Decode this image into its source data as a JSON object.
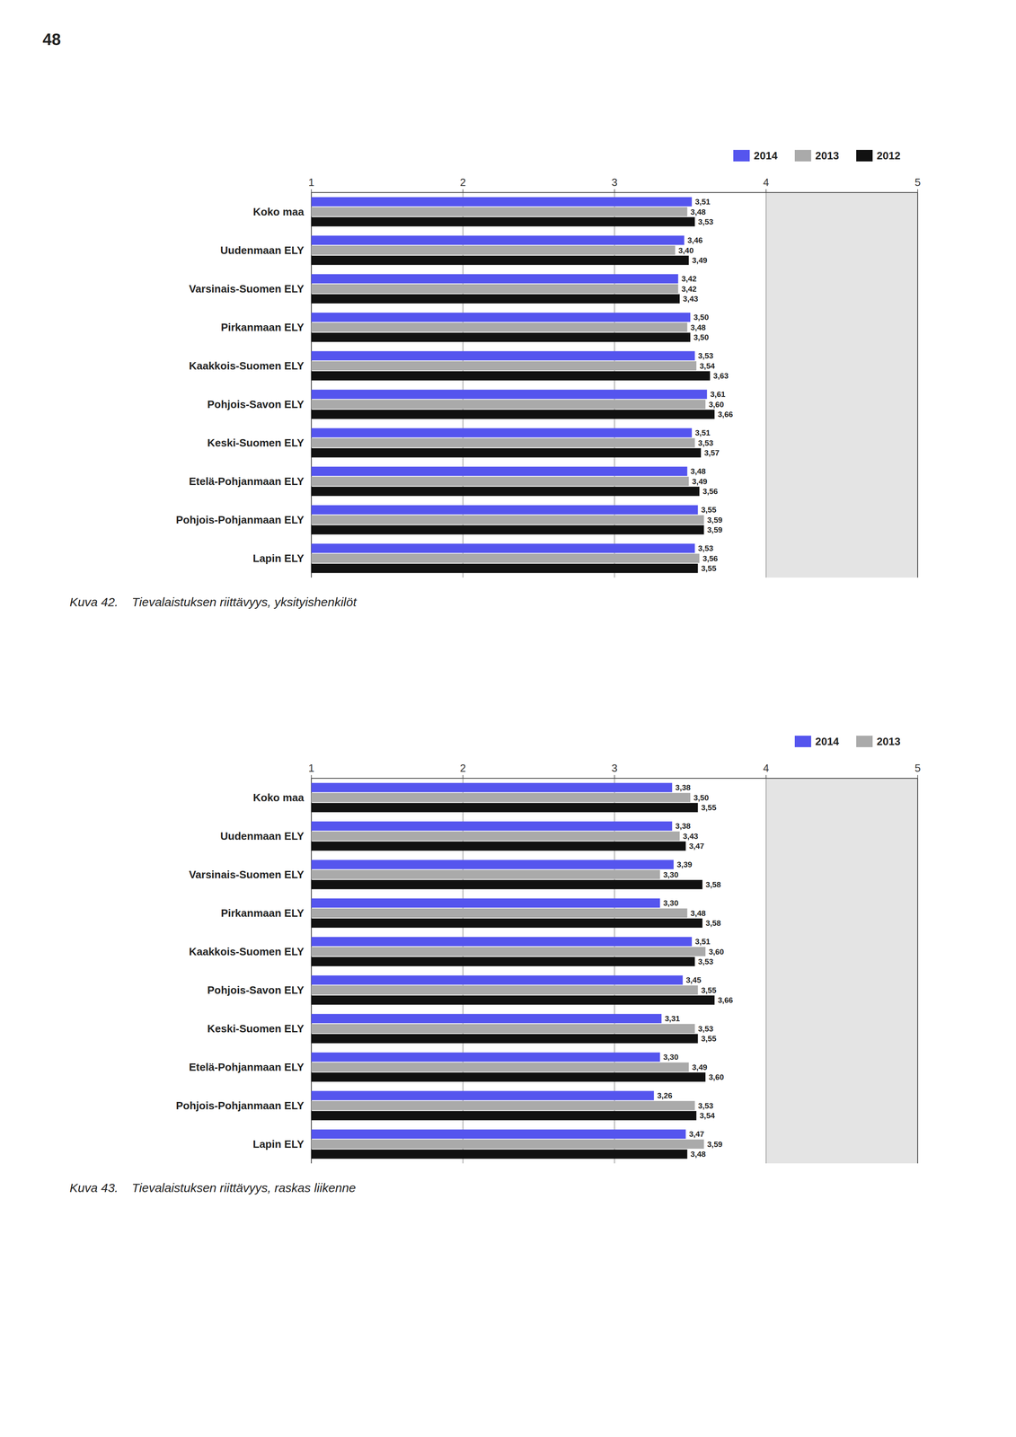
{
  "chart_data": [
    {
      "type": "bar",
      "orientation": "horizontal",
      "annotation": "48",
      "title": "Kuva 42.    Tievalaistuksen riittävyys, yksityishenkilöt",
      "categories": [
        "Koko maa",
        "Uudenmaan ELY",
        "Varsinais-Suomen ELY",
        "Pirkanmaan ELY",
        "Kaakkois-Suomen ELY",
        "Pohjois-Savon ELY",
        "Keski-Suomen ELY",
        "Etelä-Pohjanmaan ELY",
        "Pohjois-Pohjanmaan ELY",
        "Lapin ELY"
      ],
      "series": [
        {
          "name": "2014",
          "color": "#5555ee",
          "values": [
            3.51,
            3.46,
            3.42,
            3.5,
            3.53,
            3.61,
            3.51,
            3.48,
            3.55,
            3.53
          ],
          "value_labels": [
            "3,51",
            "3,46",
            "3,42",
            "3,50",
            "3,53",
            "3,61",
            "3,51",
            "3,48",
            "3,55",
            "3,53"
          ]
        },
        {
          "name": "2013",
          "color": "#aaaaaa",
          "values": [
            3.48,
            3.4,
            3.42,
            3.48,
            3.54,
            3.6,
            3.53,
            3.49,
            3.59,
            3.56
          ],
          "value_labels": [
            "3,48",
            "3,40",
            "3,42",
            "3,48",
            "3,54",
            "3,60",
            "3,53",
            "3,49",
            "3,59",
            "3,56"
          ]
        },
        {
          "name": "2012",
          "color": "#111111",
          "values": [
            3.53,
            3.49,
            3.43,
            3.5,
            3.63,
            3.66,
            3.57,
            3.56,
            3.59,
            3.55
          ],
          "value_labels": [
            "3,53",
            "3,49",
            "3,43",
            "3,50",
            "3,63",
            "3,66",
            "3,57",
            "3,56",
            "3,59",
            "3,55"
          ]
        }
      ],
      "xlim": [
        1,
        5
      ],
      "xticks": [
        1,
        2,
        3,
        4,
        5
      ],
      "shaded_region": [
        4,
        5
      ],
      "grid": true,
      "legend": "top right",
      "data_labels": true
    },
    {
      "type": "bar",
      "orientation": "horizontal",
      "title": "Kuva 43.    Tievalaistuksen riittävyys, raskas liikenne",
      "categories": [
        "Koko maa",
        "Uudenmaan ELY",
        "Varsinais-Suomen ELY",
        "Pirkanmaan ELY",
        "Kaakkois-Suomen ELY",
        "Pohjois-Savon ELY",
        "Keski-Suomen ELY",
        "Etelä-Pohjanmaan ELY",
        "Pohjois-Pohjanmaan ELY",
        "Lapin ELY"
      ],
      "series": [
        {
          "name": "2014",
          "color": "#5555ee",
          "values": [
            3.38,
            3.38,
            3.39,
            3.3,
            3.51,
            3.45,
            3.31,
            3.3,
            3.26,
            3.47
          ],
          "value_labels": [
            "3,38",
            "3,38",
            "3,39",
            "3,30",
            "3,51",
            "3,45",
            "3,31",
            "3,30",
            "3,26",
            "3,47"
          ]
        },
        {
          "name": "2013",
          "color": "#aaaaaa",
          "values": [
            3.5,
            3.43,
            3.3,
            3.48,
            3.6,
            3.55,
            3.53,
            3.49,
            3.53,
            3.59
          ],
          "value_labels": [
            "3,50",
            "3,43",
            "3,30",
            "3,48",
            "3,60",
            "3,55",
            "3,53",
            "3,49",
            "3,53",
            "3,59"
          ]
        },
        {
          "color": "#111111",
          "values": [
            3.55,
            3.47,
            3.58,
            3.58,
            3.53,
            3.66,
            3.55,
            3.6,
            3.54,
            3.48
          ],
          "value_labels": [
            "3,55",
            "3,47",
            "3,58",
            "3,58",
            "3,53",
            "3,66",
            "3,55",
            "3,60",
            "3,54",
            "3,48"
          ]
        }
      ],
      "xlim": [
        1,
        5
      ],
      "xticks": [
        1,
        2,
        3,
        4,
        5
      ],
      "shaded_region": [
        4,
        5
      ],
      "grid": true,
      "legend": "top right",
      "data_labels": true
    }
  ]
}
